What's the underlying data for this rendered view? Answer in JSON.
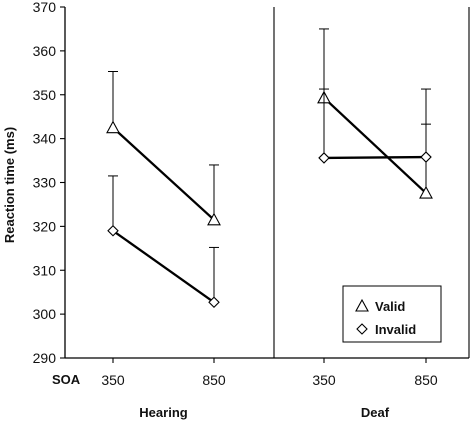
{
  "chart_data": {
    "type": "line",
    "ylabel": "Reaction time (ms)",
    "ylim": [
      290,
      370
    ],
    "yticks": [
      290,
      300,
      310,
      320,
      330,
      340,
      350,
      360,
      370
    ],
    "x_axis_label": "SOA",
    "x_ticks": [
      "350",
      "850"
    ],
    "panels": [
      {
        "name": "Hearing",
        "series": [
          {
            "name": "Valid",
            "marker": "triangle",
            "values": [
              342.5,
              321.5
            ],
            "error_upper": [
              355.3,
              334.0
            ]
          },
          {
            "name": "Invalid",
            "marker": "diamond",
            "values": [
              319.0,
              302.7
            ],
            "error_upper": [
              331.5,
              315.2
            ]
          }
        ]
      },
      {
        "name": "Deaf",
        "series": [
          {
            "name": "Valid",
            "marker": "triangle",
            "values": [
              349.3,
              327.6
            ],
            "error_upper": [
              365.0,
              343.3
            ]
          },
          {
            "name": "Invalid",
            "marker": "diamond",
            "values": [
              335.6,
              335.8
            ],
            "error_upper": [
              351.3,
              351.3
            ]
          }
        ]
      }
    ],
    "legend": {
      "placement": "bottom-right",
      "entries": [
        {
          "label": "Valid",
          "marker": "triangle"
        },
        {
          "label": "Invalid",
          "marker": "diamond"
        }
      ]
    },
    "grid": false
  }
}
